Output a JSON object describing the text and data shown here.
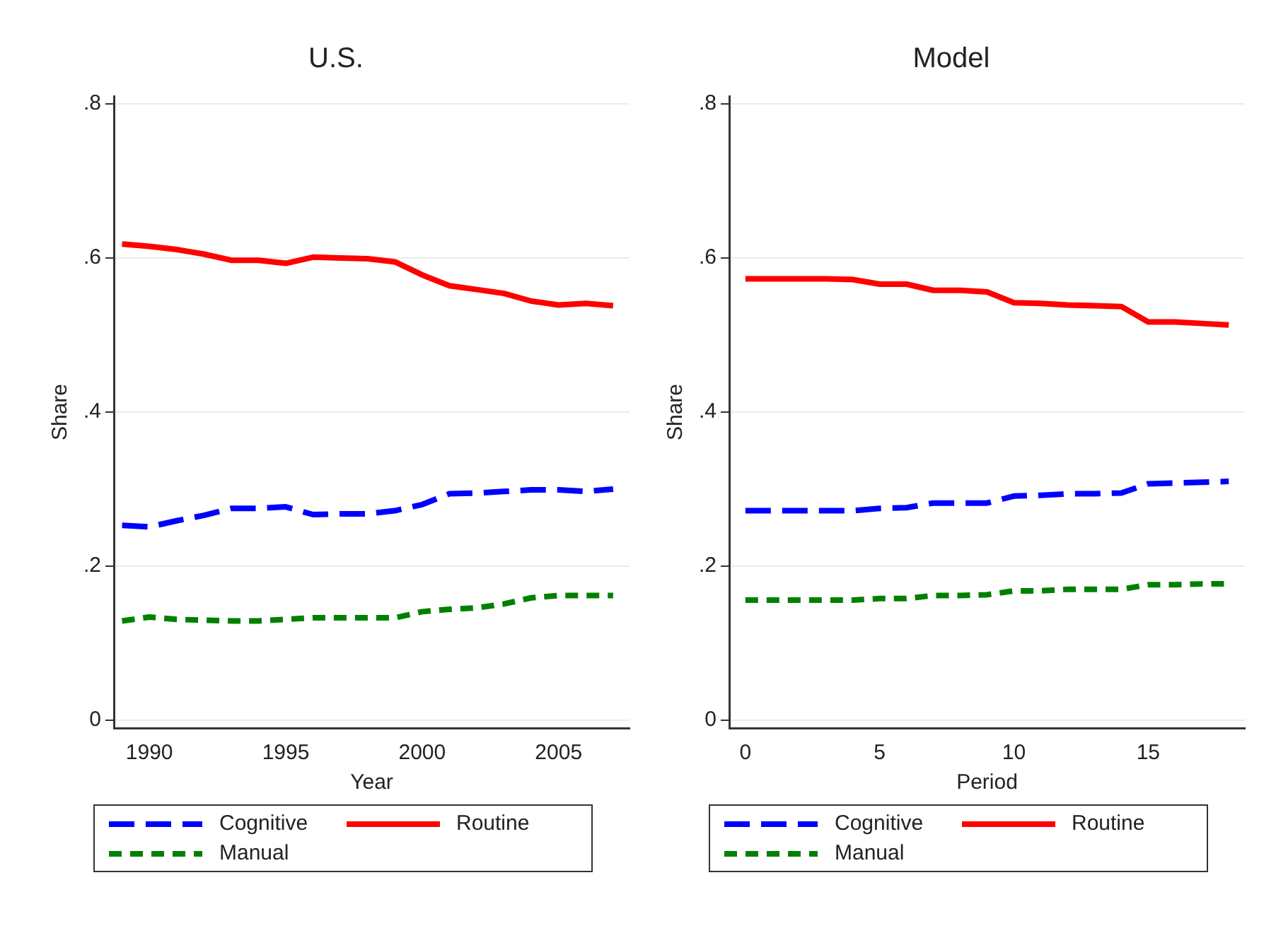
{
  "chart_data": [
    {
      "type": "line",
      "title": "U.S.",
      "xlabel": "Year",
      "ylabel": "Share",
      "x": [
        1989,
        1990,
        1991,
        1992,
        1993,
        1994,
        1995,
        1996,
        1997,
        1998,
        1999,
        2000,
        2001,
        2002,
        2003,
        2004,
        2005,
        2006,
        2007
      ],
      "xlim": [
        1988.7,
        2007.6
      ],
      "xticks": [
        1990,
        1995,
        2000,
        2005
      ],
      "ylim": [
        -0.01,
        0.81
      ],
      "yticks": [
        {
          "value": 0,
          "label": "0"
        },
        {
          "value": 0.2,
          "label": ".2"
        },
        {
          "value": 0.4,
          "label": ".4"
        },
        {
          "value": 0.6,
          "label": ".6"
        },
        {
          "value": 0.8,
          "label": ".8"
        }
      ],
      "grid": "y",
      "legend": "bottom",
      "marker": "none",
      "series": [
        {
          "name": "Cognitive",
          "color": "#0000ff",
          "line_style": "dashed",
          "values": [
            0.253,
            0.251,
            0.259,
            0.266,
            0.275,
            0.275,
            0.277,
            0.267,
            0.268,
            0.268,
            0.272,
            0.28,
            0.294,
            0.295,
            0.297,
            0.299,
            0.299,
            0.297,
            0.3
          ]
        },
        {
          "name": "Routine",
          "color": "#ff0000",
          "line_style": "solid",
          "values": [
            0.618,
            0.615,
            0.611,
            0.605,
            0.597,
            0.597,
            0.593,
            0.601,
            0.6,
            0.599,
            0.595,
            0.578,
            0.564,
            0.559,
            0.554,
            0.544,
            0.539,
            0.541,
            0.538
          ]
        },
        {
          "name": "Manual",
          "color": "#008000",
          "line_style": "dashed",
          "values": [
            0.129,
            0.134,
            0.131,
            0.13,
            0.129,
            0.129,
            0.131,
            0.133,
            0.133,
            0.133,
            0.133,
            0.141,
            0.144,
            0.146,
            0.151,
            0.159,
            0.162,
            0.162,
            0.162
          ]
        }
      ]
    },
    {
      "type": "line",
      "title": "Model",
      "xlabel": "Period",
      "ylabel": "Share",
      "x": [
        0,
        1,
        2,
        3,
        4,
        5,
        6,
        7,
        8,
        9,
        10,
        11,
        12,
        13,
        14,
        15,
        16,
        17,
        18
      ],
      "xlim": [
        -0.6,
        18.6
      ],
      "xticks": [
        0,
        5,
        10,
        15
      ],
      "ylim": [
        -0.01,
        0.81
      ],
      "yticks": [
        {
          "value": 0,
          "label": "0"
        },
        {
          "value": 0.2,
          "label": ".2"
        },
        {
          "value": 0.4,
          "label": ".4"
        },
        {
          "value": 0.6,
          "label": ".6"
        },
        {
          "value": 0.8,
          "label": ".8"
        }
      ],
      "grid": "y",
      "legend": "bottom",
      "marker": "none",
      "series": [
        {
          "name": "Cognitive",
          "color": "#0000ff",
          "line_style": "dashed",
          "values": [
            0.272,
            0.272,
            0.272,
            0.272,
            0.272,
            0.275,
            0.276,
            0.282,
            0.282,
            0.282,
            0.291,
            0.292,
            0.294,
            0.294,
            0.295,
            0.307,
            0.308,
            0.309,
            0.31
          ]
        },
        {
          "name": "Routine",
          "color": "#ff0000",
          "line_style": "solid",
          "values": [
            0.573,
            0.573,
            0.573,
            0.573,
            0.572,
            0.566,
            0.566,
            0.558,
            0.558,
            0.556,
            0.542,
            0.541,
            0.539,
            0.538,
            0.537,
            0.517,
            0.517,
            0.515,
            0.513
          ]
        },
        {
          "name": "Manual",
          "color": "#008000",
          "line_style": "dashed",
          "values": [
            0.156,
            0.156,
            0.156,
            0.156,
            0.156,
            0.158,
            0.158,
            0.162,
            0.162,
            0.163,
            0.168,
            0.168,
            0.17,
            0.17,
            0.17,
            0.176,
            0.176,
            0.177,
            0.177
          ]
        }
      ]
    }
  ]
}
